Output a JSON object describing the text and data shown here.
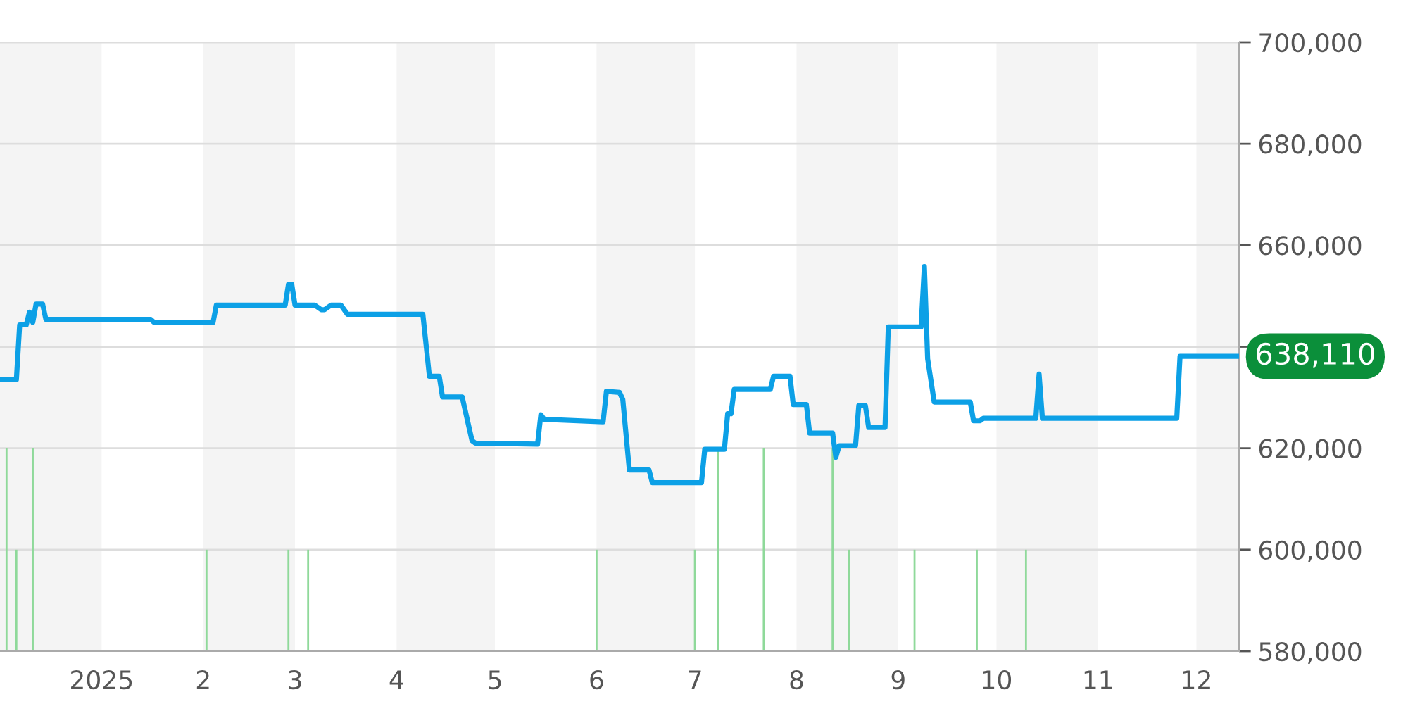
{
  "chart_data": {
    "type": "line",
    "series": [
      {
        "color": "#0ca0e6",
        "x": [
          "2024-12-01",
          "2024-12-06",
          "2024-12-07",
          "2024-12-09",
          "2024-12-10",
          "2024-12-11",
          "2024-12-12",
          "2024-12-14",
          "2024-12-15",
          "2025-01-16",
          "2025-01-17",
          "2025-02-04",
          "2025-02-05",
          "2025-02-26",
          "2025-02-27",
          "2025-02-28",
          "2025-03-01",
          "2025-03-07",
          "2025-03-09",
          "2025-03-10",
          "2025-03-12",
          "2025-03-15",
          "2025-03-17",
          "2025-04-09",
          "2025-04-11",
          "2025-04-14",
          "2025-04-15",
          "2025-04-21",
          "2025-04-24",
          "2025-04-25",
          "2025-05-14",
          "2025-05-15",
          "2025-05-16",
          "2025-06-03",
          "2025-06-04",
          "2025-06-08",
          "2025-06-09",
          "2025-06-11",
          "2025-06-17",
          "2025-06-18",
          "2025-07-03",
          "2025-07-04",
          "2025-07-10",
          "2025-07-11",
          "2025-07-12",
          "2025-07-13",
          "2025-07-24",
          "2025-07-25",
          "2025-07-30",
          "2025-07-31",
          "2025-08-04",
          "2025-08-05",
          "2025-08-12",
          "2025-08-13",
          "2025-08-14",
          "2025-08-19",
          "2025-08-20",
          "2025-08-22",
          "2025-08-23",
          "2025-08-28",
          "2025-08-29",
          "2025-09-08",
          "2025-09-09",
          "2025-09-10",
          "2025-09-12",
          "2025-09-23",
          "2025-09-24",
          "2025-09-26",
          "2025-09-27",
          "2025-10-13",
          "2025-10-14",
          "2025-10-15",
          "2025-11-25",
          "2025-11-26",
          "2025-12-14"
        ],
        "values": [
          633500,
          633500,
          644300,
          644300,
          646800,
          644800,
          648400,
          648400,
          645400,
          645400,
          644800,
          644800,
          648200,
          648200,
          652300,
          652300,
          648200,
          648200,
          647300,
          647300,
          648200,
          648200,
          646400,
          646400,
          634200,
          634200,
          630100,
          630100,
          621500,
          621000,
          620800,
          626600,
          625700,
          625200,
          631200,
          631000,
          629600,
          615700,
          615700,
          613200,
          613200,
          619800,
          619800,
          626800,
          626800,
          631600,
          631600,
          634200,
          634200,
          628600,
          628600,
          623000,
          623000,
          618200,
          620500,
          620500,
          628400,
          628400,
          624100,
          624100,
          643900,
          643900,
          655800,
          637600,
          629100,
          629100,
          625400,
          625400,
          625900,
          625900,
          634600,
          625900,
          625900,
          638110,
          638110
        ]
      },
      {
        "type": "bar",
        "color": "#8fd99a",
        "x": [
          "2024-12-03",
          "2024-12-06",
          "2024-12-11",
          "2025-02-02",
          "2025-02-27",
          "2025-03-05",
          "2025-06-01",
          "2025-07-01",
          "2025-07-08",
          "2025-07-22",
          "2025-08-12",
          "2025-08-17",
          "2025-09-06",
          "2025-09-25",
          "2025-10-10"
        ],
        "base": [
          580000,
          580000,
          580000,
          580000,
          580000,
          580000,
          580000,
          580000,
          580000,
          580000,
          580000,
          580000,
          580000,
          580000,
          580000
        ],
        "values": [
          40000,
          20000,
          40000,
          20000,
          20000,
          20000,
          20000,
          20000,
          40000,
          40000,
          40000,
          20000,
          20000,
          20000,
          20000
        ]
      }
    ],
    "xlim": [
      "2024-12-01",
      "2025-12-14"
    ],
    "xticks": [
      {
        "value": "2025-01-01",
        "label": "2025"
      },
      {
        "value": "2025-02-01",
        "label": "2"
      },
      {
        "value": "2025-03-01",
        "label": "3"
      },
      {
        "value": "2025-04-01",
        "label": "4"
      },
      {
        "value": "2025-05-01",
        "label": "5"
      },
      {
        "value": "2025-06-01",
        "label": "6"
      },
      {
        "value": "2025-07-01",
        "label": "7"
      },
      {
        "value": "2025-08-01",
        "label": "8"
      },
      {
        "value": "2025-09-01",
        "label": "9"
      },
      {
        "value": "2025-10-01",
        "label": "10"
      },
      {
        "value": "2025-11-01",
        "label": "11"
      },
      {
        "value": "2025-12-01",
        "label": "12"
      }
    ],
    "ylim": [
      580000,
      700000
    ],
    "yticks": [
      {
        "value": 580000,
        "label": "580,000"
      },
      {
        "value": 600000,
        "label": "600,000"
      },
      {
        "value": 620000,
        "label": "620,000"
      },
      {
        "value": 640000,
        "label": null
      },
      {
        "value": 660000,
        "label": "660,000"
      },
      {
        "value": 680000,
        "label": "680,000"
      },
      {
        "value": 700000,
        "label": "700,000"
      }
    ],
    "grid": "y",
    "legend": false,
    "bands": [
      {
        "axis": "x",
        "from": "2024-12-01",
        "to": "2025-01-01",
        "color": "#f4f4f4"
      },
      {
        "axis": "x",
        "from": "2025-02-01",
        "to": "2025-03-01",
        "color": "#f4f4f4"
      },
      {
        "axis": "x",
        "from": "2025-04-01",
        "to": "2025-05-01",
        "color": "#f4f4f4"
      },
      {
        "axis": "x",
        "from": "2025-06-01",
        "to": "2025-07-01",
        "color": "#f4f4f4"
      },
      {
        "axis": "x",
        "from": "2025-08-01",
        "to": "2025-09-01",
        "color": "#f4f4f4"
      },
      {
        "axis": "x",
        "from": "2025-10-01",
        "to": "2025-11-01",
        "color": "#f4f4f4"
      },
      {
        "axis": "x",
        "from": "2025-12-01",
        "to": "2025-12-14",
        "color": "#f4f4f4"
      }
    ],
    "annotations": [
      {
        "text": "638,110",
        "x": "2025-12-14",
        "y": 638110
      }
    ]
  }
}
